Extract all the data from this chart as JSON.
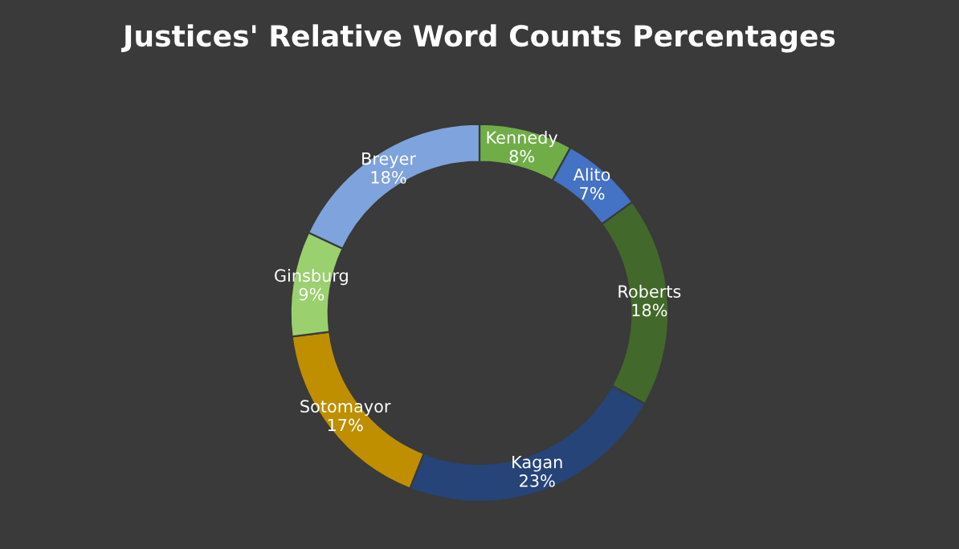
{
  "chart_data": {
    "type": "donut",
    "title": "Justices' Relative Word Counts Percentages",
    "categories": [
      "Kennedy",
      "Alito",
      "Roberts",
      "Kagan",
      "Sotomayor",
      "Ginsburg",
      "Breyer"
    ],
    "values": [
      8,
      7,
      18,
      23,
      17,
      9,
      18
    ],
    "value_labels": [
      "8%",
      "7%",
      "18%",
      "23%",
      "17%",
      "9%",
      "18%"
    ],
    "colors": [
      "#70ad47",
      "#4472c4",
      "#43682b",
      "#264478",
      "#bf8f00",
      "#9bd06f",
      "#7fa3dc"
    ],
    "legend": false
  }
}
